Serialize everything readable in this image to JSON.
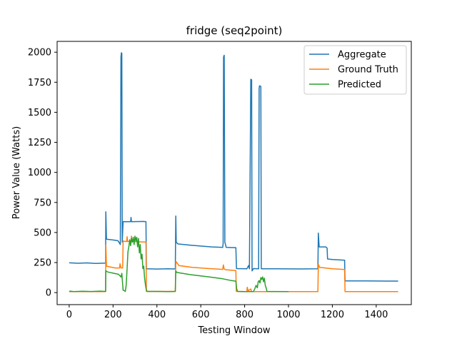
{
  "chart_data": {
    "type": "line",
    "title": "fridge (seq2point)",
    "xlabel": "Testing Window",
    "ylabel": "Power Value (Watts)",
    "xlim": [
      -55,
      1560
    ],
    "ylim": [
      -100,
      2090
    ],
    "xticks": [
      0,
      200,
      400,
      600,
      800,
      1000,
      1200,
      1400
    ],
    "yticks": [
      0,
      250,
      500,
      750,
      1000,
      1250,
      1500,
      1750,
      2000
    ],
    "grid": false,
    "legend_position": "upper right",
    "series": [
      {
        "name": "Aggregate",
        "color": "#1f77b4",
        "points": [
          [
            0,
            248
          ],
          [
            40,
            244
          ],
          [
            80,
            247
          ],
          [
            120,
            243
          ],
          [
            160,
            245
          ],
          [
            166,
            245
          ],
          [
            167,
            672
          ],
          [
            170,
            445
          ],
          [
            200,
            438
          ],
          [
            222,
            432
          ],
          [
            228,
            416
          ],
          [
            233,
            400
          ],
          [
            236,
            1960
          ],
          [
            238,
            1995
          ],
          [
            240,
            1990
          ],
          [
            242,
            420
          ],
          [
            246,
            590
          ],
          [
            280,
            590
          ],
          [
            282,
            625
          ],
          [
            284,
            590
          ],
          [
            340,
            592
          ],
          [
            350,
            590
          ],
          [
            352,
            198
          ],
          [
            400,
            196
          ],
          [
            450,
            198
          ],
          [
            484,
            197
          ],
          [
            486,
            638
          ],
          [
            488,
            420
          ],
          [
            495,
            405
          ],
          [
            550,
            395
          ],
          [
            650,
            380
          ],
          [
            700,
            376
          ],
          [
            702,
            410
          ],
          [
            704,
            1960
          ],
          [
            707,
            1975
          ],
          [
            710,
            420
          ],
          [
            716,
            376
          ],
          [
            740,
            375
          ],
          [
            760,
            374
          ],
          [
            763,
            200
          ],
          [
            810,
            198
          ],
          [
            818,
            225
          ],
          [
            822,
            198
          ],
          [
            826,
            1250
          ],
          [
            828,
            1775
          ],
          [
            832,
            1770
          ],
          [
            834,
            180
          ],
          [
            840,
            200
          ],
          [
            864,
            198
          ],
          [
            866,
            1700
          ],
          [
            868,
            1720
          ],
          [
            874,
            1715
          ],
          [
            876,
            198
          ],
          [
            950,
            198
          ],
          [
            1050,
            197
          ],
          [
            1134,
            198
          ],
          [
            1136,
            495
          ],
          [
            1140,
            380
          ],
          [
            1170,
            380
          ],
          [
            1176,
            370
          ],
          [
            1178,
            280
          ],
          [
            1200,
            275
          ],
          [
            1230,
            272
          ],
          [
            1256,
            270
          ],
          [
            1258,
            97
          ],
          [
            1350,
            97
          ],
          [
            1450,
            96
          ],
          [
            1500,
            96
          ]
        ]
      },
      {
        "name": "Ground Truth",
        "color": "#ff7f0e",
        "points": [
          [
            0,
            8
          ],
          [
            166,
            8
          ],
          [
            167,
            395
          ],
          [
            170,
            220
          ],
          [
            210,
            205
          ],
          [
            230,
            205
          ],
          [
            232,
            240
          ],
          [
            236,
            205
          ],
          [
            244,
            205
          ],
          [
            246,
            430
          ],
          [
            255,
            425
          ],
          [
            262,
            425
          ],
          [
            264,
            465
          ],
          [
            266,
            425
          ],
          [
            282,
            430
          ],
          [
            284,
            470
          ],
          [
            286,
            425
          ],
          [
            350,
            420
          ],
          [
            352,
            10
          ],
          [
            484,
            10
          ],
          [
            486,
            260
          ],
          [
            500,
            225
          ],
          [
            560,
            210
          ],
          [
            640,
            200
          ],
          [
            700,
            193
          ],
          [
            703,
            230
          ],
          [
            707,
            195
          ],
          [
            714,
            190
          ],
          [
            760,
            183
          ],
          [
            762,
            10
          ],
          [
            810,
            8
          ],
          [
            812,
            45
          ],
          [
            816,
            15
          ],
          [
            828,
            30
          ],
          [
            832,
            8
          ],
          [
            950,
            8
          ],
          [
            1134,
            8
          ],
          [
            1136,
            235
          ],
          [
            1142,
            210
          ],
          [
            1200,
            198
          ],
          [
            1256,
            192
          ],
          [
            1258,
            8
          ],
          [
            1500,
            8
          ]
        ]
      },
      {
        "name": "Predicted",
        "color": "#2ca02c",
        "points": [
          [
            0,
            10
          ],
          [
            5,
            12
          ],
          [
            20,
            8
          ],
          [
            60,
            11
          ],
          [
            100,
            9
          ],
          [
            140,
            12
          ],
          [
            166,
            10
          ],
          [
            167,
            182
          ],
          [
            175,
            172
          ],
          [
            200,
            162
          ],
          [
            225,
            152
          ],
          [
            236,
            130
          ],
          [
            240,
            160
          ],
          [
            246,
            20
          ],
          [
            250,
            18
          ],
          [
            256,
            10
          ],
          [
            260,
            60
          ],
          [
            264,
            200
          ],
          [
            268,
            340
          ],
          [
            272,
            380
          ],
          [
            276,
            440
          ],
          [
            280,
            390
          ],
          [
            284,
            450
          ],
          [
            288,
            420
          ],
          [
            292,
            460
          ],
          [
            296,
            400
          ],
          [
            300,
            470
          ],
          [
            304,
            430
          ],
          [
            308,
            460
          ],
          [
            312,
            380
          ],
          [
            316,
            450
          ],
          [
            320,
            330
          ],
          [
            324,
            400
          ],
          [
            328,
            280
          ],
          [
            332,
            320
          ],
          [
            336,
            200
          ],
          [
            340,
            220
          ],
          [
            344,
            120
          ],
          [
            348,
            60
          ],
          [
            352,
            20
          ],
          [
            356,
            10
          ],
          [
            400,
            10
          ],
          [
            450,
            8
          ],
          [
            484,
            10
          ],
          [
            486,
            180
          ],
          [
            490,
            168
          ],
          [
            550,
            150
          ],
          [
            640,
            130
          ],
          [
            700,
            115
          ],
          [
            740,
            100
          ],
          [
            760,
            95
          ],
          [
            764,
            30
          ],
          [
            768,
            10
          ],
          [
            800,
            8
          ],
          [
            840,
            8
          ],
          [
            846,
            30
          ],
          [
            852,
            60
          ],
          [
            858,
            40
          ],
          [
            862,
            90
          ],
          [
            866,
            100
          ],
          [
            870,
            80
          ],
          [
            874,
            125
          ],
          [
            878,
            110
          ],
          [
            882,
            130
          ],
          [
            886,
            90
          ],
          [
            890,
            120
          ],
          [
            894,
            60
          ],
          [
            898,
            40
          ],
          [
            902,
            10
          ],
          [
            1000,
            8
          ]
        ]
      }
    ]
  }
}
